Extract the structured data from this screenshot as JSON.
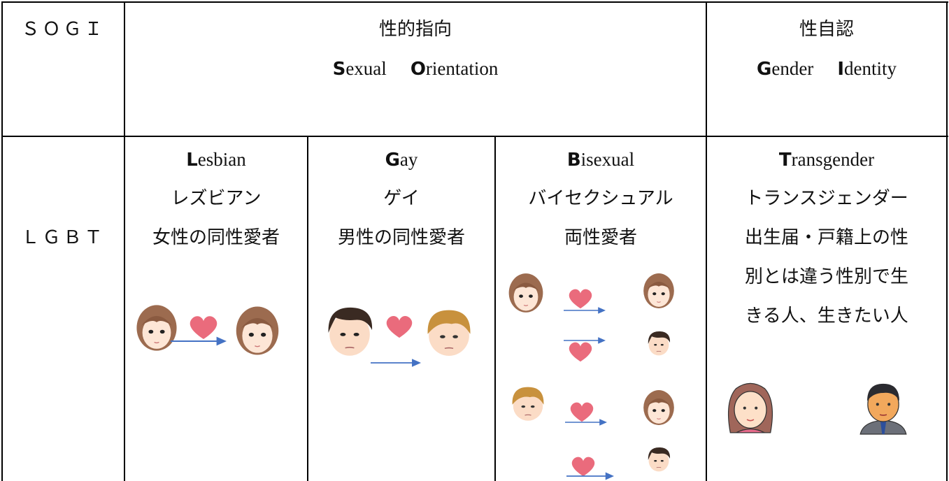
{
  "table": {
    "header": {
      "label": "ＳＯＧＩ",
      "orientation": {
        "title": "性的指向",
        "english": [
          {
            "initial": "S",
            "rest": "exual"
          },
          {
            "initial": "O",
            "rest": "rientation"
          }
        ]
      },
      "identity": {
        "title": "性自認",
        "english": [
          {
            "initial": "G",
            "rest": "ender"
          },
          {
            "initial": "I",
            "rest": "dentity"
          }
        ]
      }
    },
    "row": {
      "label": "ＬＧＢＴ",
      "cells": [
        {
          "initial": "L",
          "rest": "esbian",
          "lines": [
            "レズビアン",
            "女性の同性愛者"
          ]
        },
        {
          "initial": "G",
          "rest": "ay",
          "lines": [
            "ゲイ",
            "男性の同性愛者"
          ]
        },
        {
          "initial": "B",
          "rest": "isexual",
          "lines": [
            "バイセクシュアル",
            "両性愛者"
          ]
        },
        {
          "initial": "T",
          "rest": "ransgender",
          "lines": [
            "トランスジェンダー",
            "出生届・戸籍上の性",
            "別とは違う性別で生",
            "きる人、生きたい人"
          ]
        }
      ]
    }
  }
}
